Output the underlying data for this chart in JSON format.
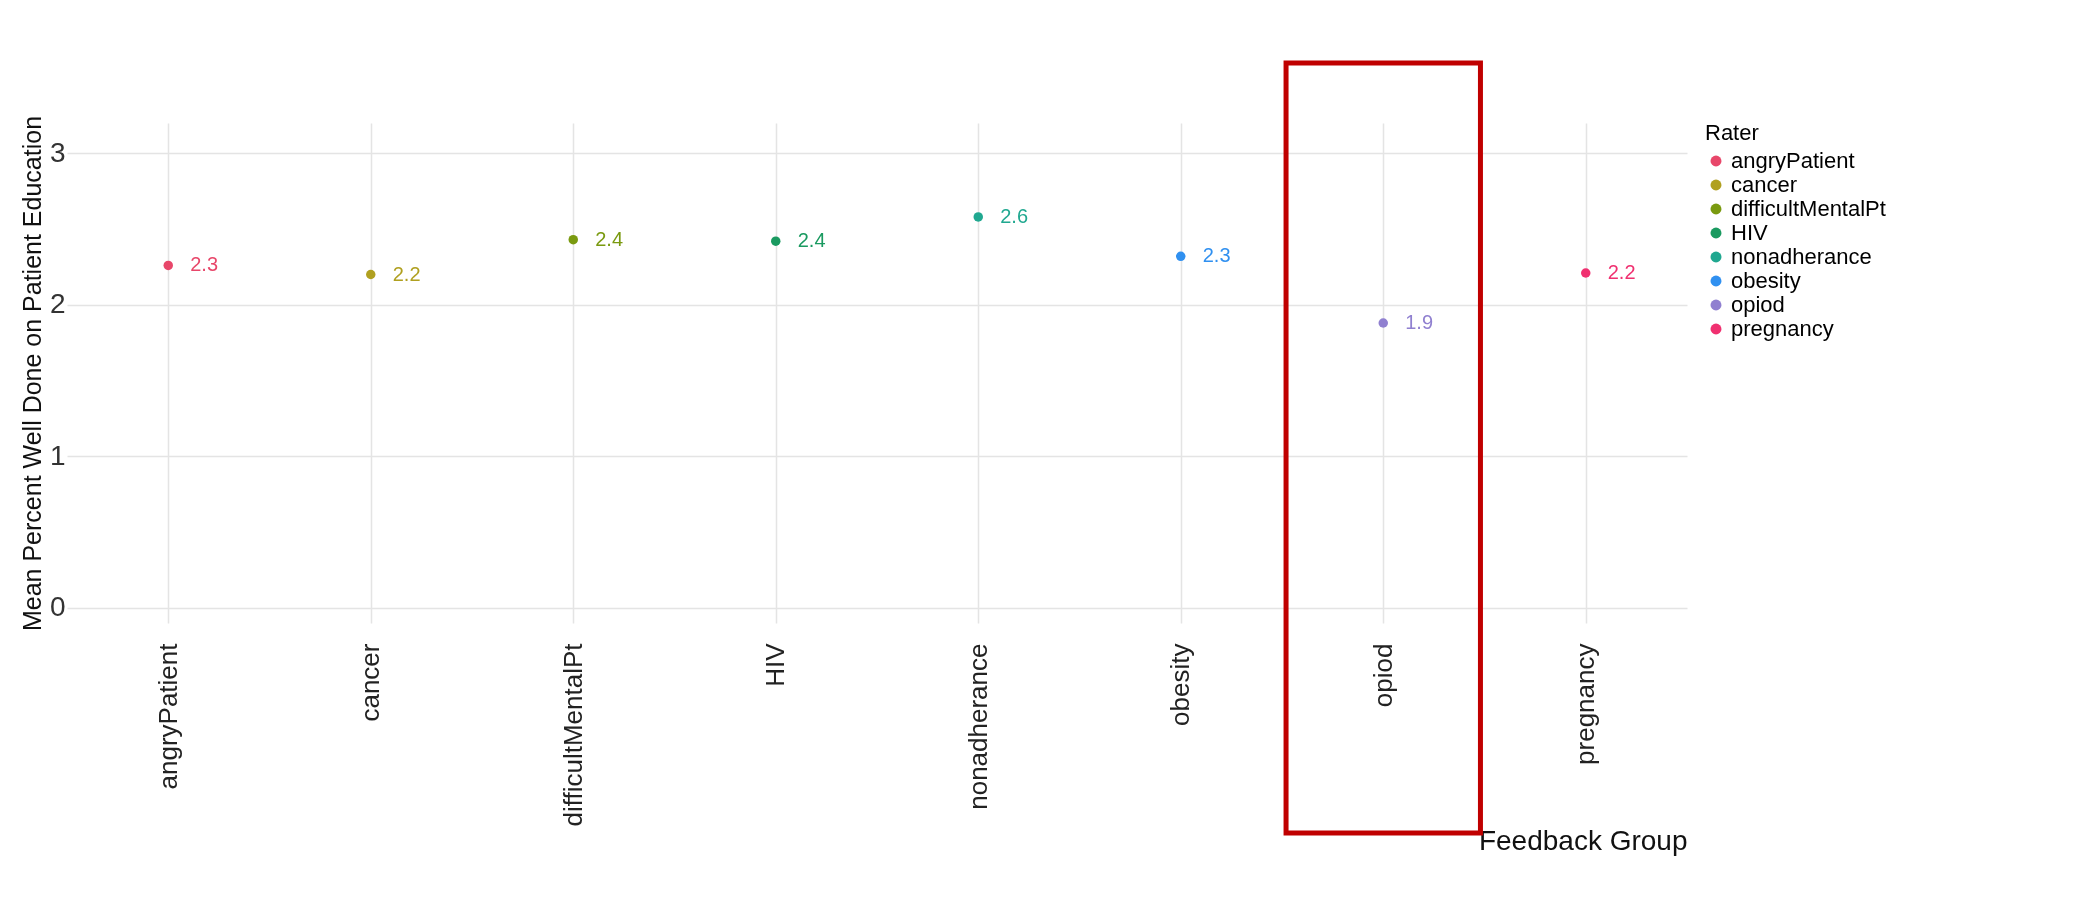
{
  "chart_data": {
    "type": "scatter",
    "xlabel": "Feedback Group",
    "ylabel": "Mean Percent Well Done on Patient Education",
    "legend_title": "Rater",
    "legend": "right",
    "grid": true,
    "categories": [
      "angryPatient",
      "cancer",
      "difficultMentalPt",
      "HIV",
      "nonadherance",
      "obesity",
      "opiod",
      "pregnancy"
    ],
    "ylim": [
      -0.1,
      3.2
    ],
    "yticks": [
      0,
      1,
      2,
      3
    ],
    "series": [
      {
        "name": "angryPatient",
        "color": "#e8476a",
        "x": [
          "angryPatient"
        ],
        "values": [
          2.26
        ],
        "value_labels": [
          "2.3"
        ]
      },
      {
        "name": "cancer",
        "color": "#b0a020",
        "x": [
          "cancer"
        ],
        "values": [
          2.2
        ],
        "value_labels": [
          "2.2"
        ]
      },
      {
        "name": "difficultMentalPt",
        "color": "#7a9a10",
        "x": [
          "difficultMentalPt"
        ],
        "values": [
          2.43
        ],
        "value_labels": [
          "2.4"
        ]
      },
      {
        "name": "HIV",
        "color": "#1a9a60",
        "x": [
          "HIV"
        ],
        "values": [
          2.42
        ],
        "value_labels": [
          "2.4"
        ]
      },
      {
        "name": "nonadherance",
        "color": "#20a890",
        "x": [
          "nonadherance"
        ],
        "values": [
          2.58
        ],
        "value_labels": [
          "2.6"
        ]
      },
      {
        "name": "obesity",
        "color": "#3090f0",
        "x": [
          "obesity"
        ],
        "values": [
          2.32
        ],
        "value_labels": [
          "2.3"
        ]
      },
      {
        "name": "opiod",
        "color": "#9080d0",
        "x": [
          "opiod"
        ],
        "values": [
          1.88
        ],
        "value_labels": [
          "1.9"
        ]
      },
      {
        "name": "pregnancy",
        "color": "#f03070",
        "x": [
          "pregnancy"
        ],
        "values": [
          2.21
        ],
        "value_labels": [
          "2.2"
        ]
      }
    ]
  }
}
